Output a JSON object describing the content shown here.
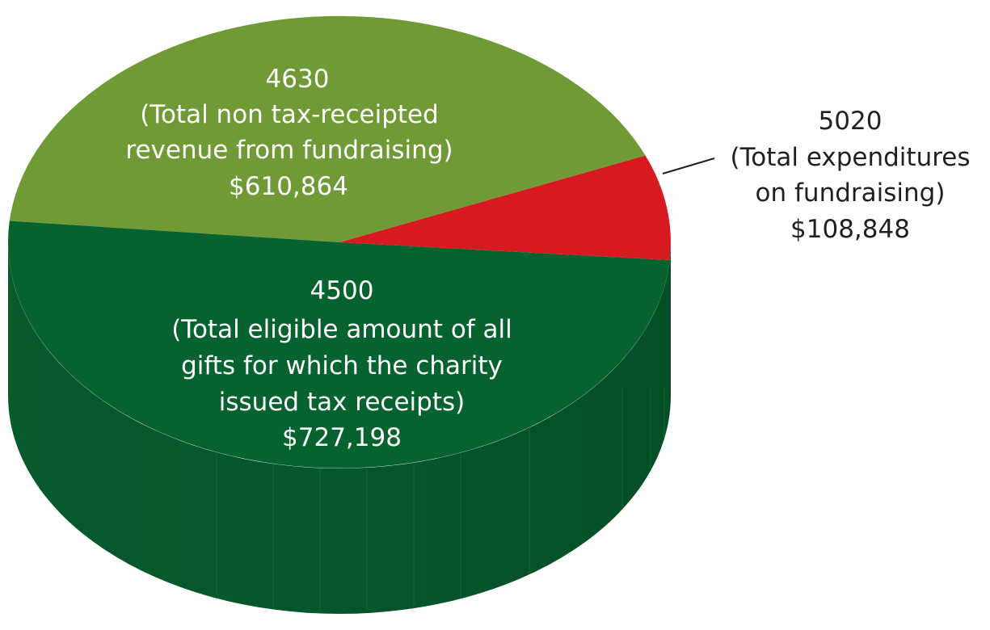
{
  "chart_data": {
    "type": "pie",
    "three_d": true,
    "slices": [
      {
        "code": "4500",
        "description_lines": [
          "(Total eligible amount of all",
          "gifts for which the charity",
          "issued tax receipts)"
        ],
        "amount_label": "$727,198",
        "value": 727198,
        "color": "#06632f"
      },
      {
        "code": "4630",
        "description_lines": [
          "(Total non tax-receipted",
          "revenue from fundraising)"
        ],
        "amount_label": "$610,864",
        "value": 610864,
        "color": "#6f9a36"
      },
      {
        "code": "5020",
        "description_lines": [
          "(Total expenditures",
          "on fundraising)"
        ],
        "amount_label": "$108,848",
        "value": 108848,
        "color": "#d71920"
      }
    ],
    "colors": {
      "side": "#05562a",
      "side_dark": "#044a24",
      "leader_line": "#231f20",
      "text_inside": "#ffffff",
      "text_outside": "#231f20"
    }
  }
}
